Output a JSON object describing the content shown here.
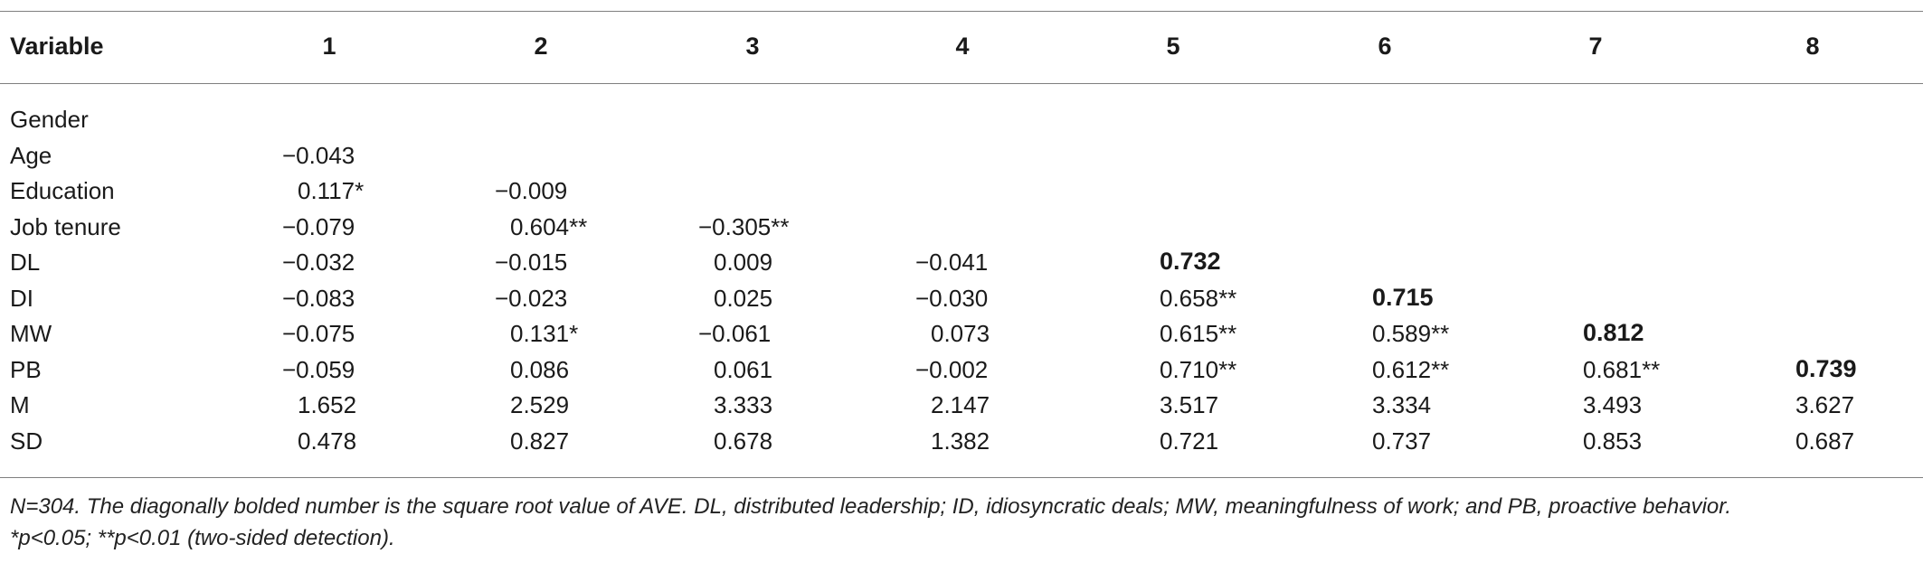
{
  "table": {
    "columns": [
      "Variable",
      "1",
      "2",
      "3",
      "4",
      "5",
      "6",
      "7",
      "8"
    ],
    "rows": [
      {
        "variable": "Gender",
        "cells": []
      },
      {
        "variable": "Age",
        "cells": [
          {
            "col": 1,
            "value": "−0.043"
          }
        ]
      },
      {
        "variable": "Education",
        "cells": [
          {
            "col": 1,
            "value": "0.117*"
          },
          {
            "col": 2,
            "value": "−0.009"
          }
        ]
      },
      {
        "variable": "Job tenure",
        "cells": [
          {
            "col": 1,
            "value": "−0.079"
          },
          {
            "col": 2,
            "value": "0.604**"
          },
          {
            "col": 3,
            "value": "−0.305**"
          }
        ]
      },
      {
        "variable": "DL",
        "cells": [
          {
            "col": 1,
            "value": "−0.032"
          },
          {
            "col": 2,
            "value": "−0.015"
          },
          {
            "col": 3,
            "value": "0.009"
          },
          {
            "col": 4,
            "value": "−0.041"
          },
          {
            "col": 5,
            "value": "0.732",
            "bold": true
          }
        ]
      },
      {
        "variable": "DI",
        "cells": [
          {
            "col": 1,
            "value": "−0.083"
          },
          {
            "col": 2,
            "value": "−0.023"
          },
          {
            "col": 3,
            "value": "0.025"
          },
          {
            "col": 4,
            "value": "−0.030"
          },
          {
            "col": 5,
            "value": "0.658**"
          },
          {
            "col": 6,
            "value": "0.715",
            "bold": true
          }
        ]
      },
      {
        "variable": "MW",
        "cells": [
          {
            "col": 1,
            "value": "−0.075"
          },
          {
            "col": 2,
            "value": "0.131*"
          },
          {
            "col": 3,
            "value": "−0.061"
          },
          {
            "col": 4,
            "value": "0.073"
          },
          {
            "col": 5,
            "value": "0.615**"
          },
          {
            "col": 6,
            "value": "0.589**"
          },
          {
            "col": 7,
            "value": "0.812",
            "bold": true
          }
        ]
      },
      {
        "variable": "PB",
        "cells": [
          {
            "col": 1,
            "value": "−0.059"
          },
          {
            "col": 2,
            "value": "0.086"
          },
          {
            "col": 3,
            "value": "0.061"
          },
          {
            "col": 4,
            "value": "−0.002"
          },
          {
            "col": 5,
            "value": "0.710**"
          },
          {
            "col": 6,
            "value": "0.612**"
          },
          {
            "col": 7,
            "value": "0.681**"
          },
          {
            "col": 8,
            "value": "0.739",
            "bold": true
          }
        ]
      },
      {
        "variable": "M",
        "cells": [
          {
            "col": 1,
            "value": "1.652"
          },
          {
            "col": 2,
            "value": "2.529"
          },
          {
            "col": 3,
            "value": "3.333"
          },
          {
            "col": 4,
            "value": "2.147"
          },
          {
            "col": 5,
            "value": "3.517"
          },
          {
            "col": 6,
            "value": "3.334"
          },
          {
            "col": 7,
            "value": "3.493"
          },
          {
            "col": 8,
            "value": "3.627"
          }
        ]
      },
      {
        "variable": "SD",
        "cells": [
          {
            "col": 1,
            "value": "0.478"
          },
          {
            "col": 2,
            "value": "0.827"
          },
          {
            "col": 3,
            "value": "0.678"
          },
          {
            "col": 4,
            "value": "1.382"
          },
          {
            "col": 5,
            "value": "0.721"
          },
          {
            "col": 6,
            "value": "0.737"
          },
          {
            "col": 7,
            "value": "0.853"
          },
          {
            "col": 8,
            "value": "0.687"
          }
        ]
      }
    ]
  },
  "footnote": {
    "line1": "N=304. The diagonally bolded number is the square root value of AVE. DL, distributed leadership; ID, idiosyncratic deals; MW, meaningfulness of work; and PB, proactive behavior.",
    "line2": "*p<0.05; **p<0.01 (two-sided detection)."
  }
}
